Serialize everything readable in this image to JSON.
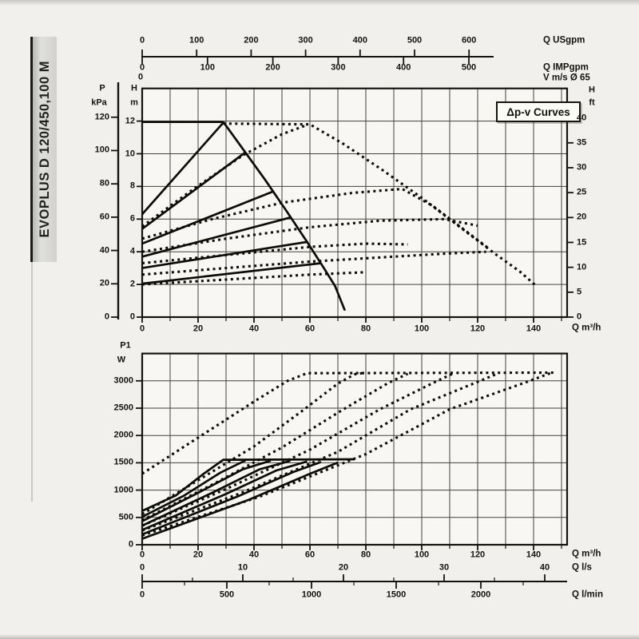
{
  "page": {
    "bg": "#f1f0ed",
    "ink": "#14140f"
  },
  "side_label": "EVOPLUS D 120/450,100 M",
  "annotation": "Δp-v Curves",
  "chart_data": [
    {
      "id": "head_flow_chart",
      "type": "line",
      "title": "",
      "xlabel": "Q m³/h",
      "ylabel": "H m",
      "xlim": [
        0,
        152
      ],
      "ylim": [
        0,
        14
      ],
      "grid": "on",
      "axes": {
        "usgpm": {
          "caption": "Q USgpm",
          "ticks": [
            "0",
            "100",
            "200",
            "300",
            "400",
            "500",
            "600"
          ],
          "values": [
            0,
            100,
            200,
            300,
            400,
            500,
            600
          ]
        },
        "impgpm": {
          "caption": "Q IMPgpm",
          "ticks": [
            "0",
            "100",
            "200",
            "300",
            "400",
            "500"
          ],
          "values": [
            0,
            100,
            200,
            300,
            400,
            500
          ]
        },
        "v_ms": {
          "caption": "V m/s Ø 65",
          "zero": "0"
        },
        "p_kpa": {
          "title": [
            "P",
            "kPa"
          ],
          "ticks": [
            "120",
            "100",
            "80",
            "60",
            "40",
            "20",
            "0"
          ],
          "values": [
            120,
            100,
            80,
            60,
            40,
            20,
            0
          ]
        },
        "h_m": {
          "title": [
            "H",
            "m"
          ],
          "ticks": [
            "12",
            "10",
            "8",
            "6",
            "4",
            "2",
            "0"
          ],
          "values": [
            12,
            10,
            8,
            6,
            4,
            2,
            0
          ]
        },
        "h_ft": {
          "title": [
            "H",
            "ft"
          ],
          "ticks": [
            "40",
            "35",
            "30",
            "25",
            "20",
            "15",
            "10",
            "5",
            "0"
          ],
          "values": [
            40,
            35,
            30,
            25,
            20,
            15,
            10,
            5,
            0
          ]
        },
        "q_m3h": {
          "caption": "Q m³/h",
          "ticks": [
            "0",
            "20",
            "40",
            "60",
            "80",
            "100",
            "120",
            "140"
          ],
          "values": [
            0,
            20,
            40,
            60,
            80,
            100,
            120,
            140
          ]
        }
      },
      "series": [
        {
          "name": "max-head-line",
          "style": "solid",
          "points": [
            [
              0,
              11.95
            ],
            [
              29,
              11.95
            ]
          ]
        },
        {
          "name": "max-envelope",
          "style": "solid",
          "points": [
            [
              29,
              11.95
            ],
            [
              36,
              10.3
            ],
            [
              44,
              8.4
            ],
            [
              52,
              6.4
            ],
            [
              59,
              4.6
            ],
            [
              65,
              3.0
            ],
            [
              69,
              1.9
            ],
            [
              72.5,
              0.4
            ]
          ]
        },
        {
          "name": "speed-curve-1",
          "style": "solid",
          "points": [
            [
              0,
              6.3
            ],
            [
              29,
              11.9
            ]
          ]
        },
        {
          "name": "speed-curve-2",
          "style": "solid",
          "points": [
            [
              0,
              5.4
            ],
            [
              37,
              10.1
            ]
          ]
        },
        {
          "name": "speed-curve-3",
          "style": "solid",
          "points": [
            [
              0,
              4.5
            ],
            [
              47,
              7.7
            ]
          ]
        },
        {
          "name": "speed-curve-4",
          "style": "solid",
          "points": [
            [
              0,
              3.7
            ],
            [
              53,
              6.1
            ]
          ]
        },
        {
          "name": "speed-curve-5",
          "style": "solid",
          "points": [
            [
              0,
              3.0
            ],
            [
              59,
              4.6
            ]
          ]
        },
        {
          "name": "speed-curve-6",
          "style": "solid",
          "points": [
            [
              0,
              2.05
            ],
            [
              64,
              3.3
            ]
          ]
        },
        {
          "name": "dpv-max",
          "style": "dotted",
          "points": [
            [
              29,
              11.85
            ],
            [
              60,
              11.8
            ],
            [
              72,
              10.6
            ],
            [
              86,
              9.0
            ],
            [
              100,
              7.3
            ],
            [
              113,
              5.6
            ],
            [
              126,
              3.9
            ],
            [
              135,
              2.8
            ],
            [
              141,
              1.9
            ]
          ]
        },
        {
          "name": "dpv-curve-1",
          "style": "dotted",
          "points": [
            [
              0,
              5.55
            ],
            [
              18,
              7.8
            ],
            [
              36,
              9.9
            ],
            [
              50,
              11.2
            ],
            [
              58,
              11.7
            ]
          ]
        },
        {
          "name": "dpv-curve-2",
          "style": "dotted",
          "points": [
            [
              0,
              4.8
            ],
            [
              25,
              6.0
            ],
            [
              50,
              7.0
            ],
            [
              75,
              7.6
            ],
            [
              93,
              7.85
            ],
            [
              104,
              6.8
            ],
            [
              114,
              5.5
            ],
            [
              124,
              4.2
            ]
          ]
        },
        {
          "name": "dpv-curve-3",
          "style": "dotted",
          "points": [
            [
              0,
              4.0
            ],
            [
              30,
              4.8
            ],
            [
              60,
              5.5
            ],
            [
              85,
              5.9
            ],
            [
              108,
              6.0
            ],
            [
              120,
              5.6
            ]
          ]
        },
        {
          "name": "dpv-curve-4",
          "style": "dotted",
          "points": [
            [
              0,
              3.3
            ],
            [
              30,
              3.8
            ],
            [
              60,
              4.3
            ],
            [
              80,
              4.5
            ],
            [
              95,
              4.45
            ]
          ]
        },
        {
          "name": "dpv-curve-5",
          "style": "dotted",
          "points": [
            [
              0,
              2.6
            ],
            [
              30,
              3.0
            ],
            [
              60,
              3.4
            ],
            [
              90,
              3.7
            ],
            [
              110,
              3.9
            ],
            [
              123,
              4.0
            ]
          ]
        },
        {
          "name": "dpv-curve-6",
          "style": "dotted",
          "points": [
            [
              0,
              2.0
            ],
            [
              30,
              2.3
            ],
            [
              60,
              2.6
            ],
            [
              80,
              2.75
            ]
          ]
        }
      ]
    },
    {
      "id": "power_flow_chart",
      "type": "line",
      "title": "",
      "xlabel": "Q m³/h",
      "ylabel": "P1 W",
      "xlim": [
        0,
        152
      ],
      "ylim": [
        0,
        3500
      ],
      "grid": "on",
      "axes": {
        "p1_w": {
          "title": [
            "P1",
            "W"
          ],
          "ticks": [
            "3000",
            "2500",
            "2000",
            "1500",
            "1000",
            "500",
            "0"
          ],
          "values": [
            3000,
            2500,
            2000,
            1500,
            1000,
            500,
            0
          ]
        },
        "q_m3h": {
          "caption": "Q m³/h",
          "ticks": [
            "0",
            "20",
            "40",
            "60",
            "80",
            "100",
            "120",
            "140"
          ],
          "values": [
            0,
            20,
            40,
            60,
            80,
            100,
            120,
            140
          ]
        },
        "q_ls": {
          "caption": "Q l/s",
          "ticks": [
            "0",
            "10",
            "20",
            "30",
            "40"
          ],
          "values": [
            0,
            10,
            20,
            30,
            40
          ]
        },
        "q_lmin": {
          "caption": "Q l/min",
          "ticks": [
            "0",
            "500",
            "1000",
            "1500",
            "2000"
          ],
          "values": [
            0,
            500,
            1000,
            1500,
            2000
          ]
        }
      },
      "series": [
        {
          "name": "power-max",
          "style": "solid",
          "points": [
            [
              0,
              620
            ],
            [
              12,
              900
            ],
            [
              22,
              1300
            ],
            [
              29,
              1555
            ],
            [
              76,
              1565
            ]
          ]
        },
        {
          "name": "power-curve-2",
          "style": "solid",
          "points": [
            [
              0,
              510
            ],
            [
              15,
              900
            ],
            [
              28,
              1320
            ],
            [
              37,
              1545
            ]
          ]
        },
        {
          "name": "power-curve-3",
          "style": "solid",
          "points": [
            [
              0,
              430
            ],
            [
              20,
              950
            ],
            [
              36,
              1380
            ],
            [
              46,
              1540
            ]
          ]
        },
        {
          "name": "power-curve-4",
          "style": "solid",
          "points": [
            [
              0,
              350
            ],
            [
              25,
              950
            ],
            [
              42,
              1380
            ],
            [
              53,
              1535
            ]
          ]
        },
        {
          "name": "power-curve-5",
          "style": "solid",
          "points": [
            [
              0,
              270
            ],
            [
              30,
              930
            ],
            [
              48,
              1360
            ],
            [
              59,
              1525
            ]
          ]
        },
        {
          "name": "power-curve-6",
          "style": "solid",
          "points": [
            [
              0,
              190
            ],
            [
              34,
              880
            ],
            [
              54,
              1330
            ],
            [
              64,
              1515
            ]
          ]
        },
        {
          "name": "power-curve-7",
          "style": "solid",
          "points": [
            [
              0,
              110
            ],
            [
              38,
              820
            ],
            [
              60,
              1300
            ],
            [
              70,
              1505
            ]
          ]
        },
        {
          "name": "dpv-power-1",
          "style": "dotted",
          "points": [
            [
              0,
              1300
            ],
            [
              20,
              1960
            ],
            [
              40,
              2620
            ],
            [
              52,
              3000
            ],
            [
              59,
              3140
            ],
            [
              148,
              3150
            ]
          ]
        },
        {
          "name": "dpv-power-2",
          "style": "dotted",
          "points": [
            [
              0,
              560
            ],
            [
              20,
              1180
            ],
            [
              40,
              1800
            ],
            [
              58,
              2480
            ],
            [
              70,
              2950
            ],
            [
              76,
              3120
            ],
            [
              80,
              3150
            ]
          ]
        },
        {
          "name": "dpv-power-3",
          "style": "dotted",
          "points": [
            [
              0,
              450
            ],
            [
              25,
              1100
            ],
            [
              50,
              1780
            ],
            [
              72,
              2480
            ],
            [
              88,
              2960
            ],
            [
              95,
              3130
            ]
          ]
        },
        {
          "name": "dpv-power-4",
          "style": "dotted",
          "points": [
            [
              0,
              350
            ],
            [
              30,
              1020
            ],
            [
              60,
              1740
            ],
            [
              85,
              2480
            ],
            [
              104,
              2960
            ],
            [
              111,
              3130
            ]
          ]
        },
        {
          "name": "dpv-power-5",
          "style": "dotted",
          "points": [
            [
              0,
              260
            ],
            [
              35,
              940
            ],
            [
              70,
              1700
            ],
            [
              96,
              2480
            ],
            [
              119,
              2960
            ],
            [
              127,
              3130
            ]
          ]
        },
        {
          "name": "dpv-power-6",
          "style": "dotted",
          "points": [
            [
              0,
              170
            ],
            [
              42,
              880
            ],
            [
              80,
              1660
            ],
            [
              110,
              2480
            ],
            [
              137,
              2970
            ],
            [
              146,
              3140
            ]
          ]
        }
      ]
    }
  ]
}
